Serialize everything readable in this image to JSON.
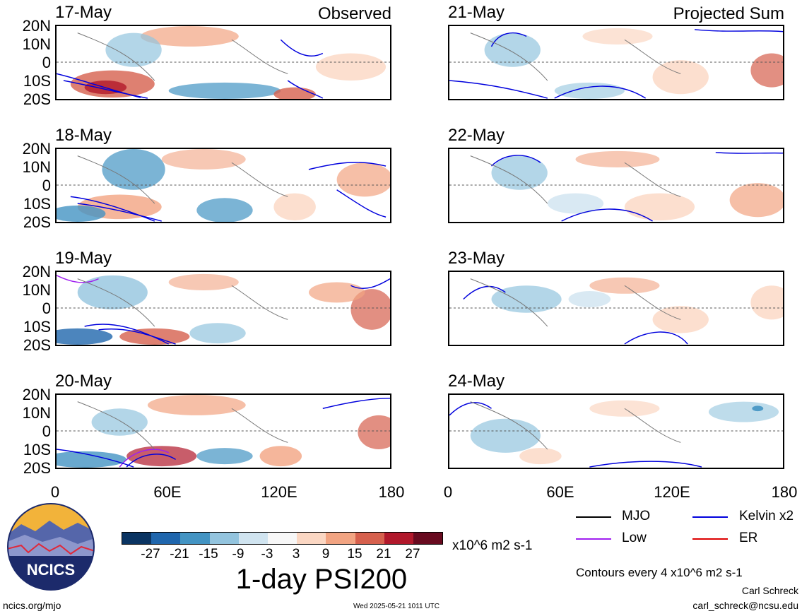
{
  "panels": [
    {
      "date": "17-May",
      "tag": "Observed"
    },
    {
      "date": "18-May",
      "tag": ""
    },
    {
      "date": "19-May",
      "tag": ""
    },
    {
      "date": "20-May",
      "tag": ""
    },
    {
      "date": "21-May",
      "tag": "Projected Sum"
    },
    {
      "date": "22-May",
      "tag": ""
    },
    {
      "date": "23-May",
      "tag": ""
    },
    {
      "date": "24-May",
      "tag": ""
    }
  ],
  "lat_labels": [
    "20N",
    "10N",
    "0",
    "10S",
    "20S"
  ],
  "lon_labels": [
    "0",
    "60E",
    "120E",
    "180"
  ],
  "colorbar": {
    "ticks": [
      "-27",
      "-21",
      "-15",
      "-9",
      "-3",
      "3",
      "9",
      "15",
      "21",
      "27"
    ],
    "units": "x10^6 m2 s-1",
    "colors": [
      "#0a3462",
      "#1f66ad",
      "#4394c3",
      "#93c4de",
      "#d0e4f0",
      "#f7f7f7",
      "#fbd7c3",
      "#f2a482",
      "#d6604d",
      "#b1182b",
      "#680a1f"
    ]
  },
  "title": "1-day PSI200",
  "legend": {
    "items": [
      {
        "label": "MJO",
        "color": "#000000"
      },
      {
        "label": "Kelvin x2",
        "color": "#0000dd"
      },
      {
        "label": "Low",
        "color": "#a020f0"
      },
      {
        "label": "ER",
        "color": "#dd0000"
      }
    ],
    "contour_note": "Contours every 4 x10^6 m2 s-1"
  },
  "credits": {
    "author": "Carl Schreck",
    "email": "carl_schreck@ncsu.edu",
    "site": "ncics.org/mjo",
    "timestamp": "Wed 2025-05-21 1011 UTC",
    "logo_text": "NCICS"
  }
}
